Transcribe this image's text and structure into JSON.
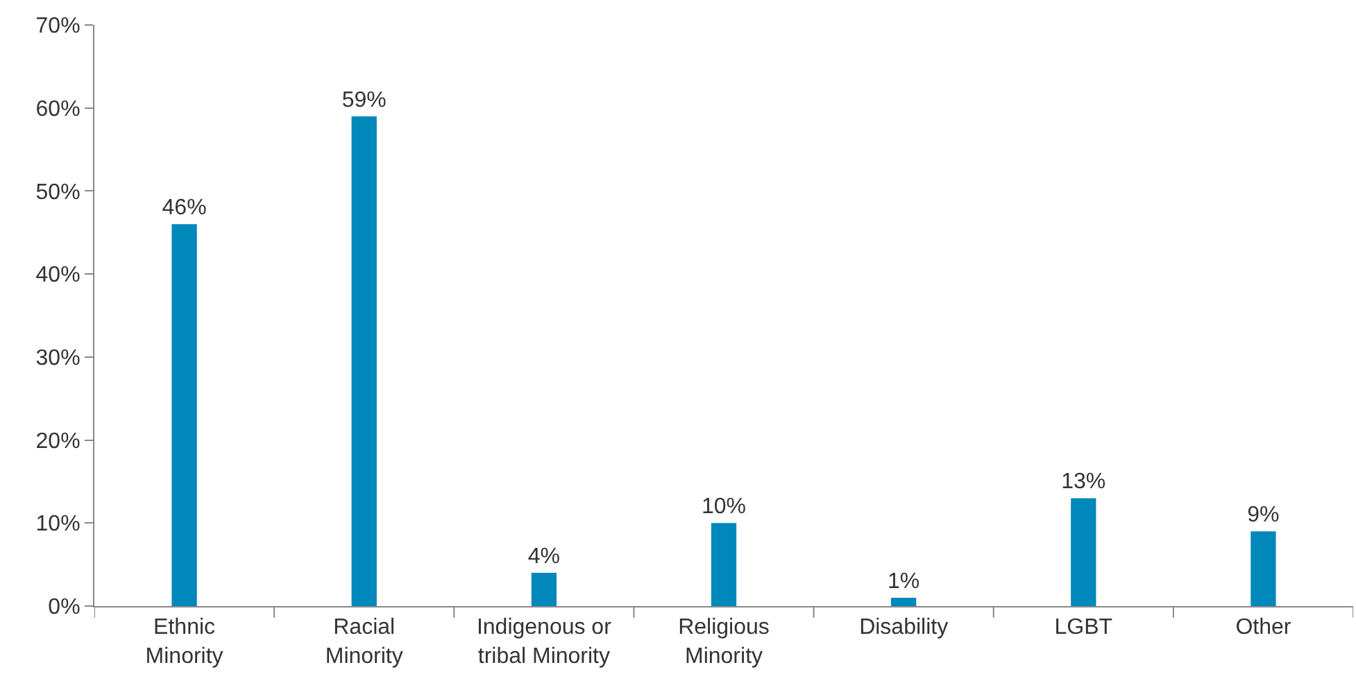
{
  "chart_data": {
    "type": "bar",
    "categories": [
      "Ethnic\nMinority",
      "Racial\nMinority",
      "Indigenous or\ntribal Minority",
      "Religious\nMinority",
      "Disability",
      "LGBT",
      "Other"
    ],
    "values": [
      46,
      59,
      4,
      10,
      1,
      13,
      9
    ],
    "value_labels": [
      "46%",
      "59%",
      "4%",
      "10%",
      "1%",
      "13%",
      "9%"
    ],
    "color": "#0088bb",
    "ylim": [
      0,
      70
    ],
    "yticks": [
      {
        "value": 0,
        "label": "0%"
      },
      {
        "value": 10,
        "label": "10%"
      },
      {
        "value": 20,
        "label": "20%"
      },
      {
        "value": 30,
        "label": "30%"
      },
      {
        "value": 40,
        "label": "40%"
      },
      {
        "value": 50,
        "label": "50%"
      },
      {
        "value": 60,
        "label": "60%"
      },
      {
        "value": 70,
        "label": "70%"
      }
    ],
    "ylabel": null
  }
}
